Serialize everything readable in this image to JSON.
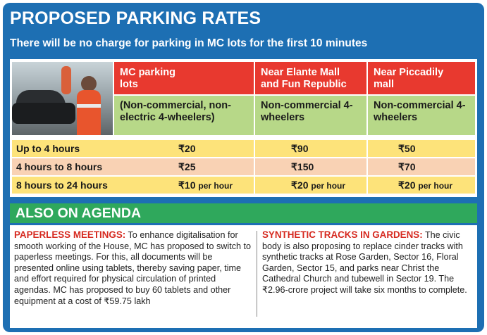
{
  "title": "PROPOSED PARKING RATES",
  "subtitle": "There will be no charge for parking in MC lots for the first 10 minutes",
  "table": {
    "columns": [
      {
        "header": "MC parking lots",
        "sub": "(Non-commercial, non-electric 4-wheelers)"
      },
      {
        "header": "Near Elante Mall and Fun Republic",
        "sub": "Non-commercial 4-wheelers"
      },
      {
        "header": "Near Piccadily mall",
        "sub": "Non-commercial 4-wheelers"
      }
    ],
    "rows": [
      {
        "duration": "Up to 4 hours",
        "mc": "₹20",
        "mc_unit": "",
        "elante": "₹90",
        "elante_unit": "",
        "piccadily": "₹50",
        "piccadily_unit": ""
      },
      {
        "duration": "4 hours to 8 hours",
        "mc": "₹25",
        "mc_unit": "",
        "elante": "₹150",
        "elante_unit": "",
        "piccadily": "₹70",
        "piccadily_unit": ""
      },
      {
        "duration": "8 hours to 24 hours",
        "mc": "₹10",
        "mc_unit": "per hour",
        "elante": "₹20",
        "elante_unit": "per hour",
        "piccadily": "₹20",
        "piccadily_unit": "per hour"
      }
    ]
  },
  "agenda": {
    "heading": "ALSO ON AGENDA",
    "left": {
      "lead": "PAPERLESS MEETINGS:",
      "text": "To enhance digitalisation for smooth working of the House, MC has proposed to switch to paperless meetings. For this, all documents will be presented online using tablets, thereby saving paper, time and effort required for physical circulation of printed agendas. MC has proposed to buy 60 tablets and other equipment at a cost of ₹59.75 lakh"
    },
    "right": {
      "lead": "SYNTHETIC TRACKS IN GARDENS:",
      "text": "The civic body is also proposing to replace cinder tracks with synthetic tracks at Rose Garden, Sector 16, Floral Garden, Sector 15, and parks near Christ the Cathedral Church and tubewell in Sector 19. The ₹2.96-crore project will take six months to complete."
    }
  },
  "colors": {
    "card": "#1d6fb3",
    "header": "#e8392f",
    "subheader": "#b7d888",
    "row_yellow": "#fde37a",
    "row_peach": "#f9d2b4",
    "agenda": "#2fa85c",
    "lead": "#d62a20"
  }
}
